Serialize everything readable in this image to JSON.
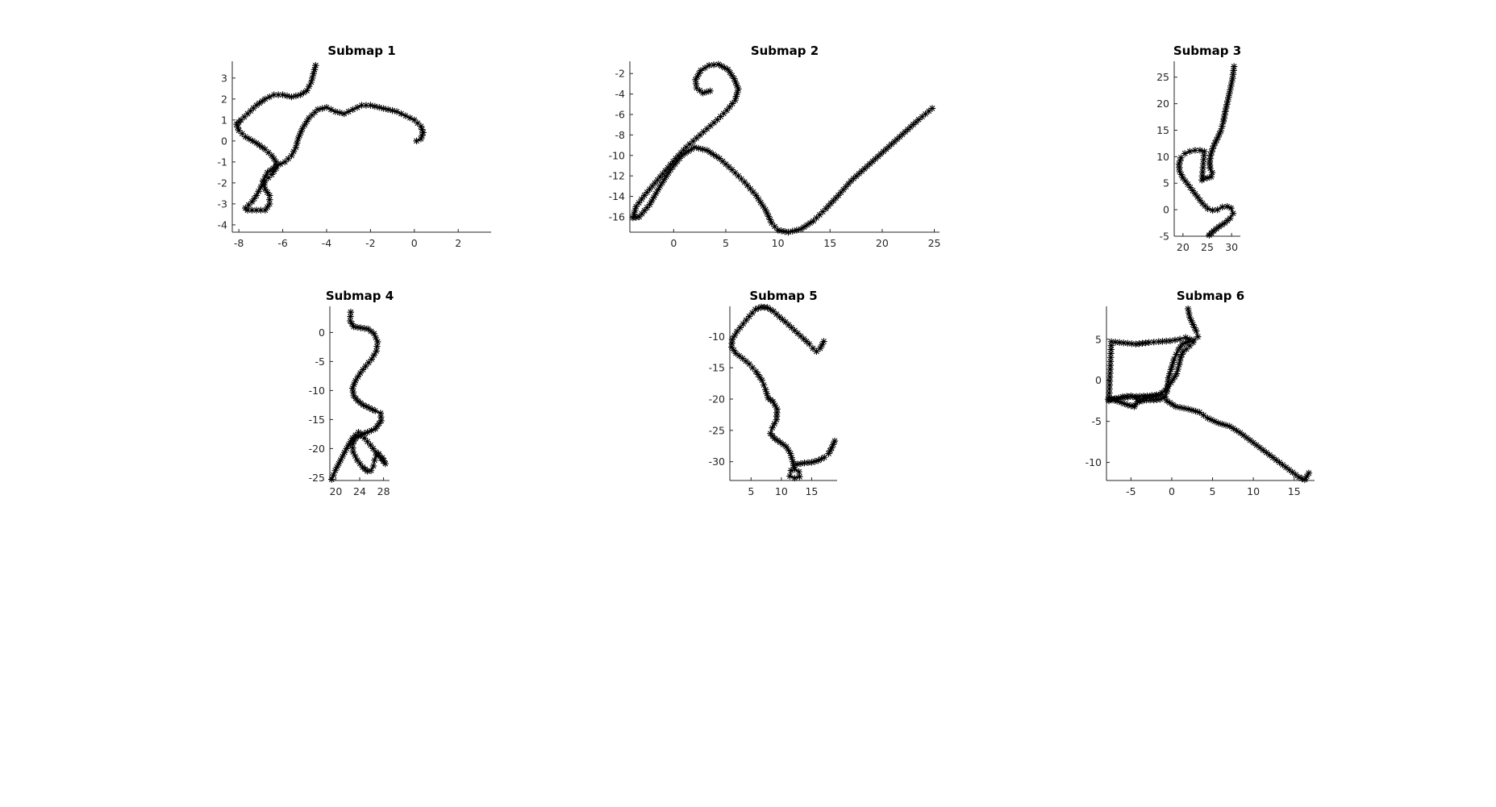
{
  "chart_data": [
    {
      "type": "line",
      "title": "Submap 1",
      "marker": "*",
      "color": "#000000",
      "xlim": [
        -8.3,
        3.5
      ],
      "ylim": [
        -4.35,
        3.8
      ],
      "xticks": [
        -8,
        -6,
        -4,
        -2,
        0,
        2
      ],
      "yticks": [
        -4,
        -3,
        -2,
        -1,
        0,
        1,
        2,
        3
      ],
      "xtick_labels": [
        "-8",
        "-6",
        "-4",
        "-2",
        "0",
        "2"
      ],
      "ytick_labels": [
        "-4",
        "-3",
        "-2",
        "-1",
        "0",
        "1",
        "2",
        "3"
      ],
      "x": [
        -4.5,
        -4.6,
        -4.7,
        -4.9,
        -5.2,
        -5.6,
        -6.0,
        -6.4,
        -6.8,
        -7.2,
        -7.6,
        -7.9,
        -8.1,
        -8.0,
        -7.7,
        -7.2,
        -6.8,
        -6.5,
        -6.3,
        -6.3,
        -6.5,
        -6.8,
        -7.0,
        -7.2,
        -7.4,
        -7.7,
        -7.6,
        -7.2,
        -6.8,
        -6.6,
        -6.6,
        -6.8,
        -6.9,
        -6.7,
        -6.3,
        -5.9,
        -5.6,
        -5.4,
        -5.3,
        -5.1,
        -4.8,
        -4.4,
        -4.0,
        -3.6,
        -3.2,
        -2.8,
        -2.4,
        -2.0,
        -1.6,
        -1.2,
        -0.8,
        -0.4,
        0.0,
        0.3,
        0.4,
        0.3,
        0.1
      ],
      "y": [
        3.6,
        3.2,
        2.8,
        2.4,
        2.2,
        2.1,
        2.2,
        2.2,
        2.0,
        1.7,
        1.3,
        1.0,
        0.8,
        0.5,
        0.2,
        -0.1,
        -0.4,
        -0.7,
        -1.0,
        -1.3,
        -1.6,
        -1.9,
        -2.2,
        -2.6,
        -2.9,
        -3.2,
        -3.3,
        -3.3,
        -3.3,
        -3.0,
        -2.6,
        -2.3,
        -1.9,
        -1.5,
        -1.2,
        -1.0,
        -0.7,
        -0.3,
        0.1,
        0.6,
        1.1,
        1.5,
        1.6,
        1.4,
        1.3,
        1.5,
        1.7,
        1.7,
        1.6,
        1.5,
        1.4,
        1.2,
        1.0,
        0.7,
        0.4,
        0.1,
        0.0
      ]
    },
    {
      "type": "line",
      "title": "Submap 2",
      "marker": "*",
      "color": "#000000",
      "xlim": [
        -4.2,
        25.5
      ],
      "ylim": [
        -17.5,
        -0.8
      ],
      "xticks": [
        0,
        5,
        10,
        15,
        20,
        25
      ],
      "yticks": [
        -16,
        -14,
        -12,
        -10,
        -8,
        -6,
        -4,
        -2
      ],
      "xtick_labels": [
        "0",
        "5",
        "10",
        "15",
        "20",
        "25"
      ],
      "ytick_labels": [
        "-16",
        "-14",
        "-12",
        "-10",
        "-8",
        "-6",
        "-4",
        "-2"
      ],
      "x": [
        3.5,
        2.8,
        2.2,
        2.1,
        2.6,
        3.4,
        4.3,
        5.2,
        5.8,
        6.2,
        5.9,
        5.1,
        4.2,
        3.2,
        2.2,
        1.2,
        0.2,
        -0.8,
        -1.8,
        -2.8,
        -3.6,
        -3.9,
        -3.3,
        -2.3,
        -1.3,
        -0.3,
        0.8,
        2.0,
        3.2,
        4.4,
        5.6,
        6.8,
        7.9,
        8.8,
        9.4,
        10.0,
        11.0,
        12.2,
        13.4,
        14.6,
        15.8,
        17.0,
        18.3,
        19.6,
        20.9,
        22.2,
        23.5,
        24.8
      ],
      "y": [
        -3.7,
        -3.9,
        -3.4,
        -2.6,
        -1.7,
        -1.2,
        -1.1,
        -1.6,
        -2.5,
        -3.5,
        -4.6,
        -5.6,
        -6.5,
        -7.4,
        -8.3,
        -9.2,
        -10.3,
        -11.5,
        -12.7,
        -13.9,
        -15.0,
        -16.1,
        -16.0,
        -14.8,
        -13.0,
        -11.4,
        -10.0,
        -9.2,
        -9.5,
        -10.3,
        -11.4,
        -12.6,
        -13.9,
        -15.3,
        -16.6,
        -17.3,
        -17.5,
        -17.2,
        -16.4,
        -15.2,
        -13.9,
        -12.5,
        -11.3,
        -10.1,
        -8.9,
        -7.7,
        -6.5,
        -5.4
      ]
    },
    {
      "type": "line",
      "title": "Submap 3",
      "marker": "*",
      "color": "#000000",
      "xlim": [
        18.2,
        31.8
      ],
      "ylim": [
        -5,
        28
      ],
      "xticks": [
        20,
        25,
        30
      ],
      "yticks": [
        -5,
        0,
        5,
        10,
        15,
        20,
        25
      ],
      "xtick_labels": [
        "20",
        "25",
        "30"
      ],
      "ytick_labels": [
        "-5",
        "0",
        "5",
        "10",
        "15",
        "20",
        "25"
      ],
      "x": [
        30.5,
        30.2,
        29.7,
        29.2,
        28.7,
        28.3,
        27.8,
        27.2,
        26.6,
        26.1,
        25.7,
        25.5,
        25.6,
        26.0,
        25.8,
        25.0,
        24.3,
        23.9,
        24.4,
        23.5,
        22.5,
        21.4,
        20.4,
        19.6,
        19.2,
        19.3,
        20.0,
        21.0,
        22.0,
        23.0,
        24.0,
        25.1,
        26.1,
        27.1,
        28.1,
        29.1,
        29.9,
        30.3,
        29.7,
        28.6,
        27.4,
        26.3,
        25.4
      ],
      "y": [
        27.0,
        24.8,
        22.6,
        20.5,
        18.5,
        16.6,
        14.9,
        13.7,
        12.6,
        11.5,
        10.3,
        9.0,
        7.8,
        7.0,
        6.2,
        6.0,
        5.9,
        5.6,
        11.0,
        11.2,
        11.2,
        11.0,
        10.6,
        9.8,
        8.6,
        7.3,
        6.0,
        4.8,
        3.6,
        2.4,
        1.2,
        0.2,
        -0.1,
        0.0,
        0.5,
        0.6,
        0.3,
        -0.7,
        -1.6,
        -2.5,
        -3.2,
        -4.0,
        -4.8
      ]
    },
    {
      "type": "line",
      "title": "Submap 4",
      "marker": "*",
      "color": "#000000",
      "xlim": [
        19,
        29
      ],
      "ylim": [
        -25.5,
        4.5
      ],
      "xticks": [
        20,
        24,
        28
      ],
      "yticks": [
        -25,
        -20,
        -15,
        -10,
        -5,
        0
      ],
      "xtick_labels": [
        "20",
        "24",
        "28"
      ],
      "ytick_labels": [
        "-25",
        "-20",
        "-15",
        "-10",
        "-5",
        "0"
      ],
      "x": [
        22.5,
        22.4,
        23.0,
        24.2,
        25.4,
        26.4,
        27.0,
        26.8,
        26.0,
        25.0,
        24.1,
        23.3,
        22.8,
        23.0,
        23.7,
        24.6,
        25.6,
        26.6,
        27.5,
        27.6,
        26.6,
        25.3,
        24.2,
        23.3,
        22.8,
        22.9,
        23.6,
        24.5,
        25.3,
        25.9,
        26.3,
        26.5,
        26.8,
        27.2,
        27.8,
        28.3,
        27.6,
        26.7,
        25.8,
        24.8,
        23.8,
        22.8,
        21.8,
        20.8,
        19.9,
        19.3
      ],
      "y": [
        3.5,
        2.0,
        1.0,
        0.8,
        0.6,
        -0.2,
        -1.6,
        -3.2,
        -4.6,
        -5.8,
        -7.0,
        -8.3,
        -9.6,
        -10.9,
        -11.8,
        -12.5,
        -13.0,
        -13.5,
        -13.9,
        -15.2,
        -16.6,
        -17.2,
        -17.6,
        -18.2,
        -19.2,
        -20.6,
        -22.0,
        -23.2,
        -23.9,
        -23.8,
        -23.0,
        -22.0,
        -21.2,
        -20.9,
        -21.6,
        -22.6,
        -21.7,
        -20.6,
        -19.4,
        -18.2,
        -17.2,
        -18.2,
        -20.0,
        -22.0,
        -23.8,
        -25.3
      ]
    },
    {
      "type": "line",
      "title": "Submap 5",
      "marker": "*",
      "color": "#000000",
      "xlim": [
        1.5,
        19.2
      ],
      "ylim": [
        -33,
        -5.2
      ],
      "xticks": [
        5,
        10,
        15
      ],
      "yticks": [
        -30,
        -25,
        -20,
        -15,
        -10
      ],
      "xtick_labels": [
        "5",
        "10",
        "15"
      ],
      "ytick_labels": [
        "-30",
        "-25",
        "-20",
        "-15",
        "-10"
      ],
      "x": [
        17.0,
        16.4,
        15.8,
        15.2,
        14.6,
        13.7,
        12.7,
        11.7,
        10.7,
        9.7,
        8.7,
        7.7,
        6.7,
        5.7,
        4.7,
        3.7,
        2.7,
        1.9,
        1.8,
        2.5,
        3.6,
        4.7,
        5.8,
        6.8,
        7.4,
        7.8,
        8.6,
        9.3,
        9.2,
        8.5,
        8.2,
        8.9,
        9.8,
        10.8,
        11.5,
        11.9,
        12.2,
        12.9,
        13.0,
        12.2,
        11.4,
        11.6,
        12.6,
        13.8,
        15.0,
        16.1,
        17.1,
        17.8,
        18.3,
        18.8
      ],
      "y": [
        -10.8,
        -11.9,
        -12.4,
        -11.9,
        -11.2,
        -10.4,
        -9.5,
        -8.6,
        -7.7,
        -6.9,
        -6.0,
        -5.4,
        -5.3,
        -5.7,
        -6.8,
        -8.0,
        -9.2,
        -10.5,
        -11.7,
        -12.7,
        -13.5,
        -14.4,
        -15.6,
        -17.0,
        -18.5,
        -19.8,
        -20.4,
        -21.6,
        -23.3,
        -24.6,
        -25.5,
        -26.3,
        -26.9,
        -27.6,
        -28.7,
        -30.0,
        -31.2,
        -31.6,
        -32.4,
        -32.6,
        -32.3,
        -31.4,
        -30.4,
        -30.2,
        -30.1,
        -29.8,
        -29.3,
        -28.7,
        -27.8,
        -26.7
      ]
    },
    {
      "type": "line",
      "title": "Submap 6",
      "marker": "*",
      "color": "#000000",
      "xlim": [
        -8,
        17.5
      ],
      "ylim": [
        -12.2,
        9
      ],
      "xticks": [
        -5,
        0,
        5,
        10,
        15
      ],
      "yticks": [
        -10,
        -5,
        0,
        5
      ],
      "xtick_labels": [
        "-5",
        "0",
        "5",
        "10",
        "15"
      ],
      "ytick_labels": [
        "-10",
        "-5",
        "0",
        "5"
      ],
      "x": [
        2.0,
        2.2,
        2.6,
        3.0,
        3.2,
        2.7,
        2.0,
        1.3,
        0.8,
        0.3,
        -0.1,
        -0.4,
        -0.5,
        -0.6,
        -0.8,
        -1.4,
        -2.2,
        -3.1,
        -4.0,
        -4.5,
        -4.0,
        -3.4,
        -3.0,
        -2.4,
        -1.6,
        -0.8,
        -0.1,
        0.6,
        0.9,
        1.1,
        1.4,
        1.8,
        2.2,
        2.6,
        2.2,
        1.7,
        1.0,
        -0.2,
        -1.6,
        -2.8,
        -3.6,
        -4.4,
        -5.4,
        -6.4,
        -7.4,
        -7.7,
        -7.0,
        -6.0,
        -5.0,
        -4.4,
        -4.2,
        -4.6,
        -5.4,
        -6.2,
        -7.2,
        -7.8,
        -6.5,
        -4.8,
        -3.0,
        -1.3,
        -0.6,
        0.5,
        2.0,
        3.4,
        4.4,
        5.7,
        7.1,
        8.4,
        9.6,
        10.8,
        12.0,
        13.2,
        14.4,
        15.6,
        16.3,
        16.8
      ],
      "y": [
        8.7,
        7.7,
        6.8,
        6.0,
        5.3,
        4.9,
        4.7,
        4.4,
        3.7,
        2.6,
        1.3,
        0.3,
        -0.6,
        -1.4,
        -2.0,
        -2.3,
        -2.4,
        -2.4,
        -2.6,
        -3.0,
        -2.5,
        -2.1,
        -2.0,
        -2.0,
        -1.8,
        -1.2,
        -0.3,
        0.8,
        1.9,
        2.8,
        3.5,
        3.8,
        4.2,
        4.6,
        5.0,
        5.2,
        5.0,
        4.8,
        4.7,
        4.6,
        4.5,
        4.4,
        4.5,
        4.6,
        4.7,
        -2.5,
        -2.3,
        -2.0,
        -1.9,
        -2.1,
        -2.6,
        -3.2,
        -3.0,
        -2.7,
        -2.4,
        -2.3,
        -2.2,
        -2.0,
        -1.9,
        -1.7,
        -2.5,
        -3.2,
        -3.5,
        -3.9,
        -4.6,
        -5.2,
        -5.6,
        -6.4,
        -7.3,
        -8.2,
        -9.1,
        -10.0,
        -10.9,
        -11.8,
        -12.1,
        -11.3
      ]
    }
  ]
}
